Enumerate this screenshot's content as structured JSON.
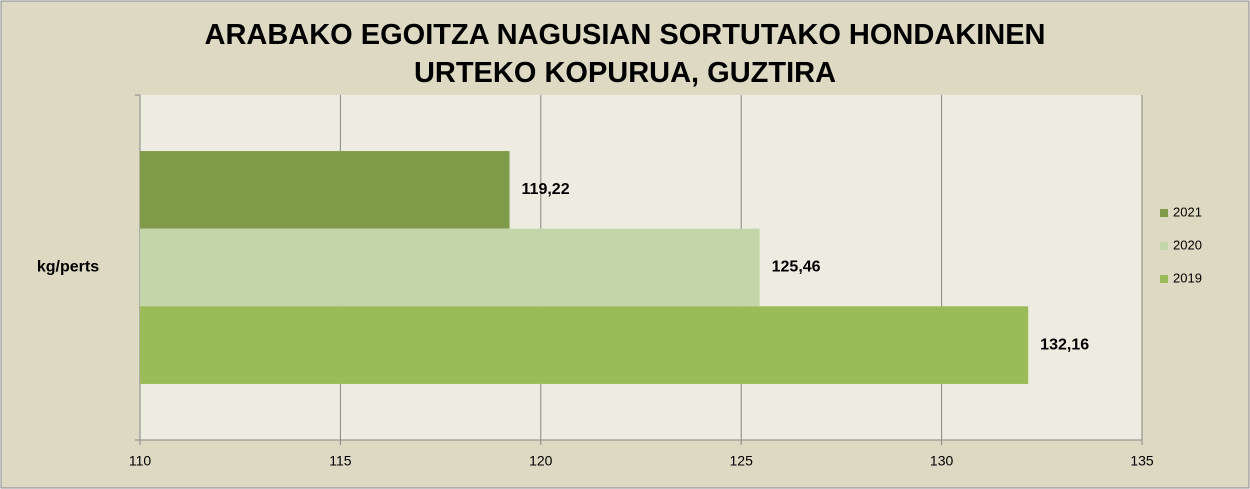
{
  "chart_data": {
    "type": "barh",
    "title": "ARABAKO EGOITZA NAGUSIAN SORTUTAKO HONDAKINEN URTEKO KOPURUA, GUZTIRA",
    "categories": [
      "kg/perts"
    ],
    "series": [
      {
        "name": "2021",
        "color": "#7f9a48",
        "values": [
          119.22
        ],
        "value_labels": [
          "119,22"
        ]
      },
      {
        "name": "2020",
        "color": "#c4d6a9",
        "values": [
          125.46
        ],
        "value_labels": [
          "125,46"
        ]
      },
      {
        "name": "2019",
        "color": "#9bbb59",
        "values": [
          132.16
        ],
        "value_labels": [
          "132,16"
        ]
      }
    ],
    "xlim": [
      110,
      135
    ],
    "xticks": [
      110,
      115,
      120,
      125,
      130,
      135
    ],
    "grid": true,
    "legend": "right"
  }
}
